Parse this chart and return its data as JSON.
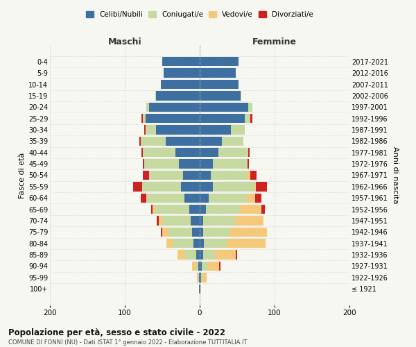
{
  "age_groups": [
    "100+",
    "95-99",
    "90-94",
    "85-89",
    "80-84",
    "75-79",
    "70-74",
    "65-69",
    "60-64",
    "55-59",
    "50-54",
    "45-49",
    "40-44",
    "35-39",
    "30-34",
    "25-29",
    "20-24",
    "15-19",
    "10-14",
    "5-9",
    "0-4"
  ],
  "birth_years": [
    "≤ 1921",
    "1922-1926",
    "1927-1931",
    "1932-1936",
    "1937-1941",
    "1942-1946",
    "1947-1951",
    "1952-1956",
    "1957-1961",
    "1962-1966",
    "1967-1971",
    "1972-1976",
    "1977-1981",
    "1982-1986",
    "1987-1991",
    "1992-1996",
    "1997-2001",
    "2002-2006",
    "2007-2011",
    "2012-2016",
    "2017-2021"
  ],
  "colors": {
    "celibe": "#3d6fa0",
    "coniugato": "#c5d9a0",
    "vedovo": "#f5c97a",
    "divorziato": "#cc2222"
  },
  "maschi": {
    "celibe": [
      1,
      1,
      2,
      5,
      8,
      10,
      12,
      14,
      20,
      25,
      22,
      28,
      32,
      45,
      58,
      72,
      68,
      58,
      52,
      48,
      50
    ],
    "coniugato": [
      0,
      1,
      3,
      15,
      28,
      32,
      38,
      46,
      50,
      52,
      46,
      46,
      44,
      34,
      14,
      4,
      3,
      1,
      0,
      0,
      0
    ],
    "vedovo": [
      0,
      2,
      5,
      10,
      8,
      8,
      5,
      3,
      1,
      0,
      0,
      0,
      0,
      0,
      0,
      0,
      0,
      0,
      0,
      0,
      0
    ],
    "divorziato": [
      0,
      0,
      0,
      0,
      0,
      2,
      2,
      2,
      8,
      12,
      8,
      2,
      2,
      2,
      2,
      2,
      0,
      0,
      0,
      0,
      0
    ]
  },
  "femmine": {
    "nubile": [
      1,
      2,
      3,
      5,
      6,
      5,
      5,
      8,
      12,
      18,
      15,
      18,
      25,
      30,
      42,
      60,
      65,
      55,
      52,
      48,
      52
    ],
    "coniugata": [
      0,
      2,
      8,
      15,
      30,
      35,
      42,
      46,
      52,
      55,
      48,
      46,
      40,
      28,
      18,
      8,
      5,
      1,
      0,
      0,
      0
    ],
    "vedova": [
      1,
      5,
      15,
      28,
      52,
      50,
      38,
      28,
      10,
      2,
      5,
      0,
      0,
      0,
      0,
      0,
      0,
      0,
      0,
      0,
      0
    ],
    "divorziata": [
      0,
      0,
      2,
      2,
      0,
      0,
      0,
      5,
      8,
      15,
      8,
      2,
      2,
      0,
      0,
      2,
      0,
      0,
      0,
      0,
      0
    ]
  },
  "xlim": [
    -200,
    200
  ],
  "xticks": [
    -200,
    -100,
    0,
    100,
    200
  ],
  "xticklabels": [
    "200",
    "100",
    "0",
    "100",
    "200"
  ],
  "title1": "Popolazione per età, sesso e stato civile - 2022",
  "title2": "COMUNE DI FONNI (NU) - Dati ISTAT 1° gennaio 2022 - Elaborazione TUTTITALIA.IT",
  "ylabel_left": "Fasce di età",
  "ylabel_right": "Anni di nascita",
  "header_maschi": "Maschi",
  "header_femmine": "Femmine",
  "legend_labels": [
    "Celibi/Nubili",
    "Coniugati/e",
    "Vedovi/e",
    "Divorziati/e"
  ],
  "bg_color": "#f7f7f2",
  "plot_bg": "#f7f7f2"
}
